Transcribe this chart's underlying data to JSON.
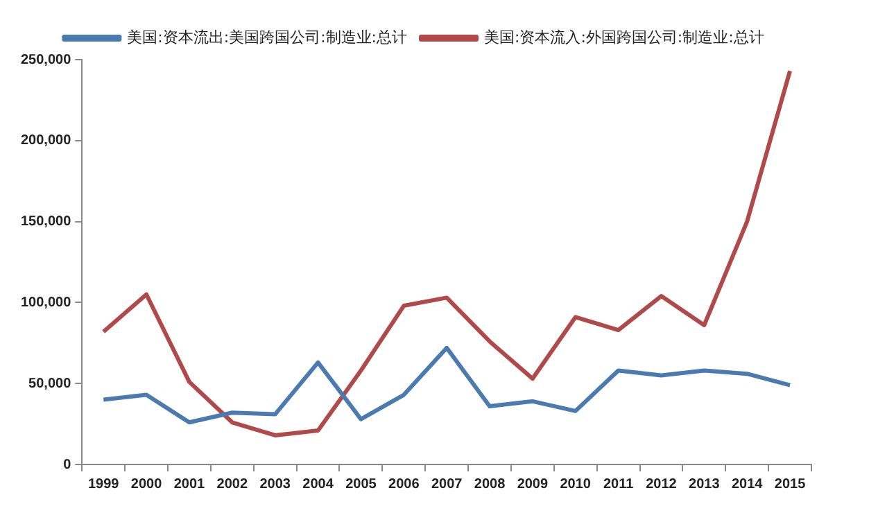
{
  "chart_data": {
    "type": "line",
    "categories": [
      "1999",
      "2000",
      "2001",
      "2002",
      "2003",
      "2004",
      "2005",
      "2006",
      "2007",
      "2008",
      "2009",
      "2010",
      "2011",
      "2012",
      "2013",
      "2014",
      "2015"
    ],
    "series": [
      {
        "name": "美国:资本流出:美国跨国公司:制造业:总计",
        "color": "#4a7ab0",
        "values": [
          40000,
          43000,
          26000,
          32000,
          31000,
          63000,
          28000,
          43000,
          72000,
          36000,
          39000,
          33000,
          58000,
          55000,
          58000,
          56000,
          49000
        ]
      },
      {
        "name": "美国:资本流入:外国跨国公司:制造业:总计",
        "color": "#b04a4a",
        "values": [
          82000,
          105000,
          51000,
          26000,
          18000,
          21000,
          58000,
          98000,
          103000,
          76000,
          53000,
          91000,
          83000,
          104000,
          86000,
          150000,
          243000
        ]
      }
    ],
    "ylim": [
      0,
      250000
    ],
    "yticks": [
      {
        "value": 0,
        "label": "0"
      },
      {
        "value": 50000,
        "label": "50,000"
      },
      {
        "value": 100000,
        "label": "100,000"
      },
      {
        "value": 150000,
        "label": "150,000"
      },
      {
        "value": 200000,
        "label": "200,000"
      },
      {
        "value": 250000,
        "label": "250,000"
      }
    ],
    "grid": false,
    "legend": "top",
    "marker": "none",
    "line_style": "solid"
  }
}
